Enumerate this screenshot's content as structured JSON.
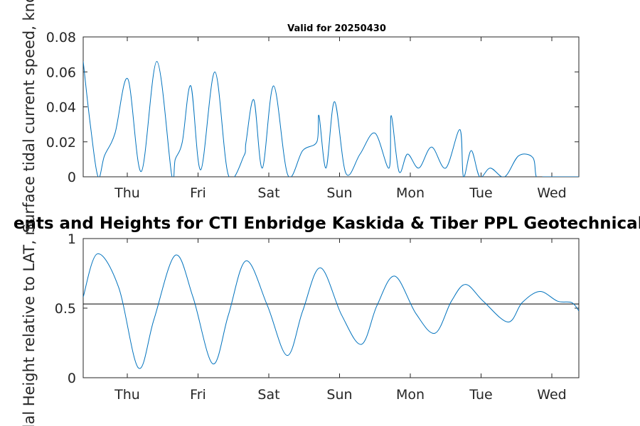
{
  "chart_data": [
    {
      "type": "line",
      "title": "Valid for 20250430",
      "xlabel": "",
      "ylabel": "Surface tidal current speed, knots",
      "x_ticks": [
        "Thu",
        "Fri",
        "Sat",
        "Sun",
        "Mon",
        "Tue",
        "Wed"
      ],
      "y_ticks": [
        "0",
        "0.02",
        "0.04",
        "0.06",
        "0.08"
      ],
      "ylim": [
        0,
        0.08
      ],
      "xlim_days": [
        0,
        7
      ],
      "grid": false,
      "color": "#0072BD",
      "series": [
        {
          "x": [
            0.0,
            0.1,
            0.21,
            0.3,
            0.45,
            0.63,
            0.82,
            1.04,
            1.25,
            1.3,
            1.4,
            1.52,
            1.66,
            1.86,
            2.05,
            2.27,
            2.3,
            2.41,
            2.53,
            2.69,
            2.89,
            3.1,
            3.3,
            3.33,
            3.43,
            3.55,
            3.71,
            3.91,
            4.12,
            4.32,
            4.35,
            4.46,
            4.58,
            4.74,
            4.92,
            5.12,
            5.32,
            5.37,
            5.48,
            5.6,
            5.75,
            5.95,
            6.15,
            6.35,
            6.4,
            6.5,
            6.62,
            6.79,
            6.97,
            7.0
          ],
          "y": [
            0.066,
            0.03,
            0.0,
            0.012,
            0.025,
            0.056,
            0.003,
            0.066,
            0.001,
            0.01,
            0.02,
            0.052,
            0.004,
            0.06,
            0.001,
            0.012,
            0.02,
            0.044,
            0.005,
            0.052,
            0.001,
            0.015,
            0.02,
            0.035,
            0.005,
            0.043,
            0.002,
            0.013,
            0.025,
            0.005,
            0.035,
            0.003,
            0.013,
            0.005,
            0.017,
            0.005,
            0.027,
            0.0,
            0.015,
            0.0,
            0.005,
            0.0,
            0.012,
            0.011,
            0.0,
            0.0,
            0.0,
            0.0,
            0.0,
            0.0
          ]
        }
      ]
    },
    {
      "type": "line",
      "title": "Tidal Currents and Heights for CTI Enbridge  Kaskida & Tiber PPL Geotechnical and Geophysical Survey",
      "title_visible": "ents and Heights for CTI Enbridge  Kaskida & Tiber PPL Geotechnical a",
      "xlabel": "",
      "ylabel": "Tidal Height relative to LAT, m",
      "x_ticks": [
        "Thu",
        "Fri",
        "Sat",
        "Sun",
        "Mon",
        "Tue",
        "Wed"
      ],
      "y_ticks": [
        "0",
        "0.5",
        "1"
      ],
      "ylim": [
        0,
        1
      ],
      "xlim_days": [
        0,
        7
      ],
      "grid": false,
      "color": "#0072BD",
      "reference_line": 0.53,
      "series": [
        {
          "x": [
            0.0,
            0.2,
            0.5,
            0.78,
            1.0,
            1.3,
            1.55,
            1.83,
            2.05,
            2.3,
            2.6,
            2.88,
            3.1,
            3.35,
            3.65,
            3.93,
            4.15,
            4.4,
            4.7,
            4.97,
            5.2,
            5.4,
            5.65,
            6.0,
            6.2,
            6.45,
            6.7,
            6.9,
            7.0
          ],
          "y": [
            0.58,
            0.89,
            0.65,
            0.07,
            0.42,
            0.88,
            0.58,
            0.1,
            0.45,
            0.84,
            0.52,
            0.16,
            0.48,
            0.79,
            0.45,
            0.24,
            0.52,
            0.73,
            0.46,
            0.32,
            0.55,
            0.67,
            0.55,
            0.4,
            0.54,
            0.62,
            0.55,
            0.54,
            0.48
          ]
        }
      ]
    }
  ]
}
